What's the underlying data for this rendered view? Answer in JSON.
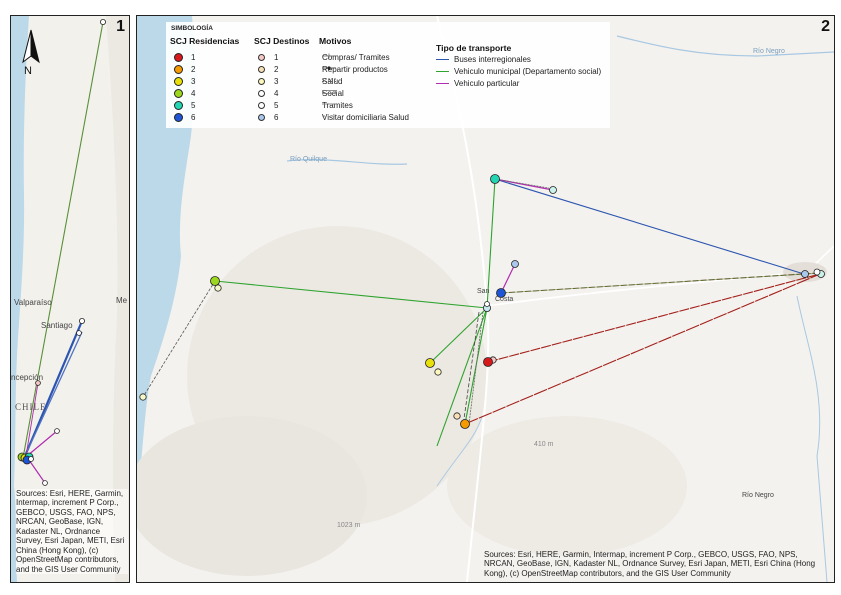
{
  "panels": {
    "overview": {
      "number": "1",
      "north_label": "N",
      "place_labels": [
        "Valparaíso",
        "Santiago",
        "Me",
        "ncepción",
        "CHILE"
      ],
      "credit": "Sources: Esri, HERE, Garmin, Intermap, increment P Corp., GEBCO, USGS, FAO, NPS, NRCAN, GeoBase, IGN, Kadaster NL, Ordnance Survey, Esri Japan, METI, Esri China (Hong Kong), (c) OpenStreetMap contributors, and the GIS User Community"
    },
    "detail": {
      "number": "2",
      "place_labels": [
        "Río Quilque",
        "San",
        "Costa",
        "Río Negro",
        "Río Negro",
        "410 m",
        "1023 m"
      ],
      "credit": "Sources: Esri, HERE, Garmin, Intermap, increment P Corp., GEBCO, USGS, FAO, NPS, NRCAN, GeoBase, IGN, Kadaster NL, Ordnance Survey, Esri Japan, METI, Esri China (Hong Kong), (c) OpenStreetMap contributors, and the GIS User Community"
    }
  },
  "legend": {
    "title": "SIMBOLOGÍA",
    "residencias_title": "SCJ Residencias",
    "destinos_title": "SCJ Destinos",
    "motivos_title": "Motivos",
    "transporte_title": "Tipo de transporte",
    "groups": [
      {
        "label": "1",
        "color": "#d7191c"
      },
      {
        "label": "2",
        "color": "#f59a00"
      },
      {
        "label": "3",
        "color": "#e8e00a"
      },
      {
        "label": "4",
        "color": "#9bd71c"
      },
      {
        "label": "5",
        "color": "#22d6b4"
      },
      {
        "label": "6",
        "color": "#1e55d6"
      }
    ],
    "destinos": [
      {
        "label": "1",
        "color": "#f6c7c3"
      },
      {
        "label": "2",
        "color": "#f9dfb8"
      },
      {
        "label": "3",
        "color": "#fbf7bd"
      },
      {
        "label": "4",
        "color": "#ffffff"
      },
      {
        "label": "5",
        "color": "#ffffff"
      },
      {
        "label": "6",
        "color": "#a9c8ec"
      }
    ],
    "motivos": [
      "Compras/ Tramites",
      "Repartir productos",
      "Salud",
      "Social",
      "Tramites",
      "Visitar domiciliaria Salud"
    ],
    "transporte": [
      {
        "label": "Buses interregionales",
        "color": "#2b55b0"
      },
      {
        "label": "Vehiculo municipal (Departamento social)",
        "color": "#2ea32e"
      },
      {
        "label": "Vehiculo particular",
        "color": "#b02cb0"
      }
    ]
  }
}
